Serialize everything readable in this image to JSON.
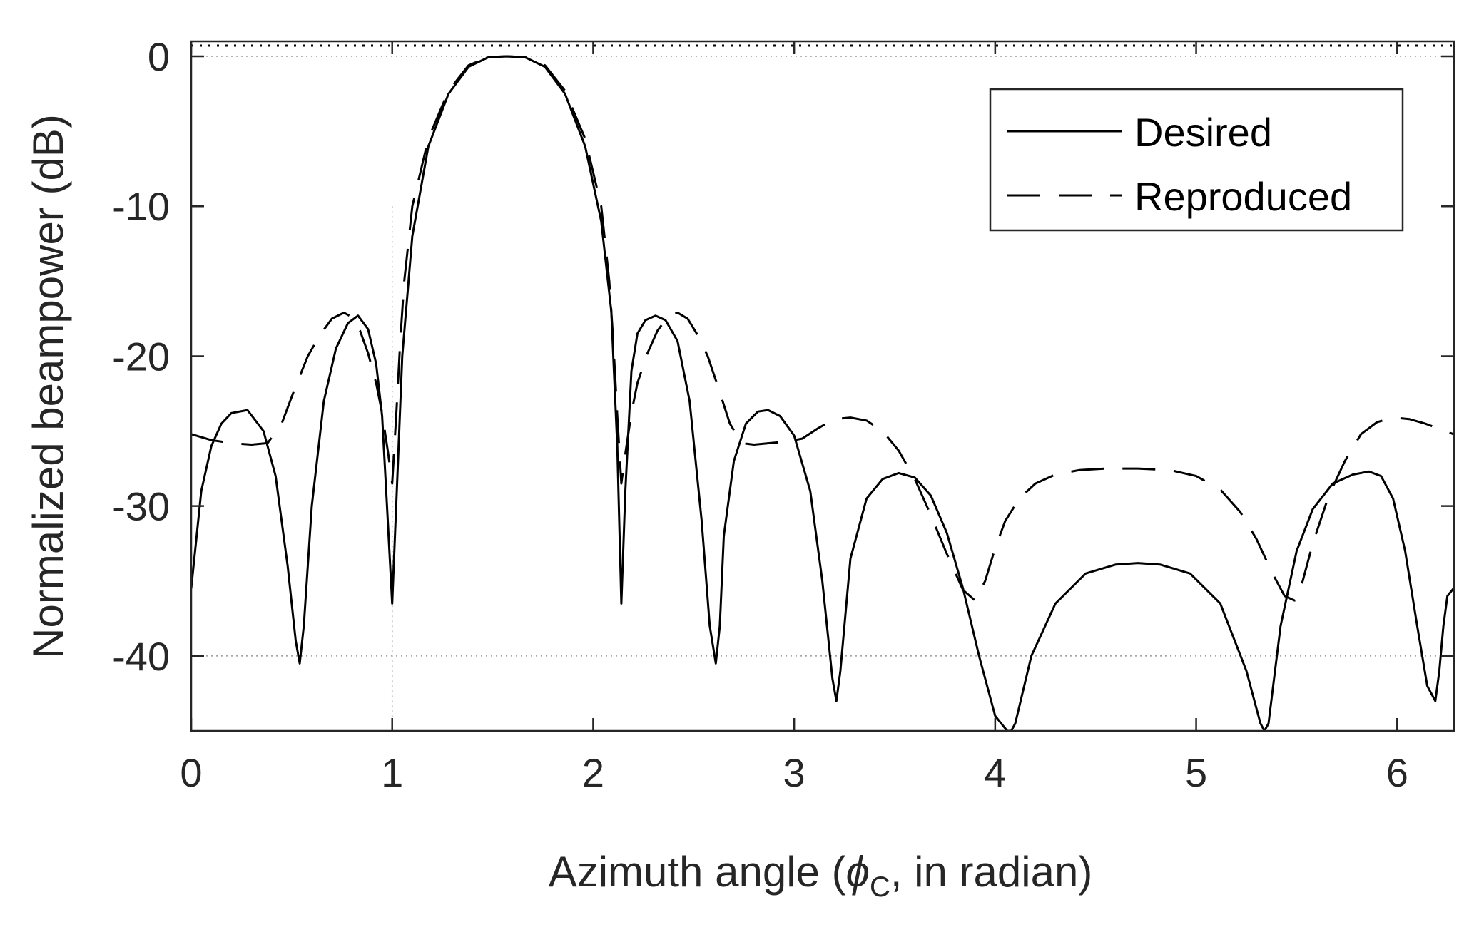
{
  "chart_data": {
    "type": "line",
    "title": "",
    "xlabel_main": "Azimuth angle (",
    "xlabel_symbol": "ϕ",
    "xlabel_sub": "C",
    "xlabel_tail": ", in radian)",
    "ylabel": "Normalized beampower (dB)",
    "xlim": [
      0,
      6.283
    ],
    "ylim": [
      -45,
      1
    ],
    "x_ticks": [
      0,
      1,
      2,
      3,
      4,
      5,
      6
    ],
    "y_ticks": [
      0,
      -10,
      -20,
      -30,
      -40
    ],
    "x_tick_labels": [
      "0",
      "1",
      "2",
      "3",
      "4",
      "5",
      "6"
    ],
    "y_tick_labels": [
      "0",
      "-10",
      "-20",
      "-30",
      "-40"
    ],
    "grid": "dotted lines at x = 1 and y = -40, 0",
    "legend_position": "top-right",
    "series": [
      {
        "name": "Desired",
        "style": "solid",
        "color": "#000000",
        "x": [
          0,
          0.05,
          0.1,
          0.15,
          0.2,
          0.28,
          0.36,
          0.42,
          0.48,
          0.52,
          0.54,
          0.56,
          0.6,
          0.66,
          0.72,
          0.78,
          0.83,
          0.88,
          0.92,
          0.95,
          0.97,
          0.99,
          1.0,
          1.02,
          1.05,
          1.1,
          1.18,
          1.28,
          1.38,
          1.48,
          1.57,
          1.66,
          1.76,
          1.86,
          1.96,
          2.04,
          2.09,
          2.12,
          2.14,
          2.16,
          2.19,
          2.22,
          2.26,
          2.31,
          2.36,
          2.42,
          2.48,
          2.54,
          2.58,
          2.61,
          2.63,
          2.65,
          2.7,
          2.76,
          2.82,
          2.87,
          2.93,
          3.0,
          3.08,
          3.14,
          3.19,
          3.21,
          3.23,
          3.28,
          3.36,
          3.44,
          3.52,
          3.6,
          3.68,
          3.76,
          3.84,
          3.92,
          4.0,
          4.06,
          4.08,
          4.1,
          4.18,
          4.3,
          4.45,
          4.6,
          4.71,
          4.82,
          4.97,
          5.12,
          5.25,
          5.32,
          5.34,
          5.36,
          5.42,
          5.5,
          5.58,
          5.68,
          5.78,
          5.86,
          5.92,
          5.98,
          6.04,
          6.1,
          6.15,
          6.19,
          6.21,
          6.23,
          6.25,
          6.28
        ],
        "y": [
          -35.5,
          -29,
          -26,
          -24.5,
          -23.8,
          -23.6,
          -25,
          -28,
          -34,
          -39,
          -40.5,
          -38,
          -30,
          -23,
          -19.5,
          -17.8,
          -17.3,
          -18.2,
          -20.5,
          -24,
          -29,
          -34,
          -36.5,
          -30,
          -20,
          -12,
          -6,
          -2.5,
          -0.7,
          -0.05,
          0,
          -0.05,
          -0.7,
          -2.5,
          -6,
          -11,
          -17,
          -26,
          -36.5,
          -29,
          -21,
          -18.5,
          -17.6,
          -17.3,
          -17.6,
          -19,
          -23,
          -31,
          -38,
          -40.5,
          -38,
          -32,
          -27,
          -24.5,
          -23.7,
          -23.6,
          -24,
          -25.3,
          -29,
          -35,
          -41.5,
          -43,
          -41,
          -33.5,
          -29.5,
          -28.2,
          -27.8,
          -28.1,
          -29.3,
          -31.8,
          -35.5,
          -40,
          -44,
          -45,
          -45,
          -44.5,
          -40,
          -36.5,
          -34.5,
          -33.9,
          -33.8,
          -33.9,
          -34.5,
          -36.5,
          -41,
          -44.5,
          -45,
          -44.5,
          -38,
          -33,
          -30.2,
          -28.5,
          -27.9,
          -27.7,
          -28,
          -29.5,
          -33,
          -38,
          -42,
          -43,
          -41,
          -38,
          -36,
          -35.5
        ]
      },
      {
        "name": "Reproduced",
        "style": "dashed",
        "color": "#000000",
        "x": [
          0,
          0.1,
          0.2,
          0.3,
          0.38,
          0.45,
          0.52,
          0.58,
          0.64,
          0.7,
          0.76,
          0.8,
          0.84,
          0.88,
          0.92,
          0.95,
          0.98,
          1.0,
          1.02,
          1.04,
          1.06,
          1.1,
          1.18,
          1.28,
          1.38,
          1.48,
          1.57,
          1.66,
          1.76,
          1.86,
          1.96,
          2.04,
          2.08,
          2.1,
          2.12,
          2.14,
          2.16,
          2.19,
          2.22,
          2.27,
          2.32,
          2.37,
          2.42,
          2.47,
          2.52,
          2.57,
          2.62,
          2.68,
          2.74,
          2.8,
          2.88,
          2.96,
          3.04,
          3.12,
          3.2,
          3.28,
          3.36,
          3.44,
          3.52,
          3.6,
          3.68,
          3.76,
          3.84,
          3.9,
          3.95,
          4.0,
          4.05,
          4.12,
          4.2,
          4.3,
          4.42,
          4.55,
          4.71,
          4.87,
          5.0,
          5.12,
          5.22,
          5.3,
          5.38,
          5.44,
          5.49,
          5.53,
          5.58,
          5.66,
          5.74,
          5.82,
          5.9,
          5.98,
          6.06,
          6.14,
          6.2,
          6.28
        ],
        "y": [
          -25.2,
          -25.6,
          -25.8,
          -25.9,
          -25.8,
          -24.5,
          -22,
          -20,
          -18.6,
          -17.5,
          -17.1,
          -17.4,
          -18.3,
          -19.8,
          -21.8,
          -23.8,
          -26.5,
          -28.5,
          -24,
          -19,
          -15,
          -10,
          -5.5,
          -2.3,
          -0.6,
          -0.05,
          0,
          -0.05,
          -0.6,
          -2.3,
          -5.5,
          -10,
          -15,
          -19,
          -24,
          -28.5,
          -26.5,
          -23.8,
          -21.8,
          -19.8,
          -18.3,
          -17.4,
          -17.1,
          -17.5,
          -18.6,
          -20,
          -22,
          -24.5,
          -25.8,
          -25.9,
          -25.8,
          -25.7,
          -25.5,
          -24.8,
          -24.2,
          -24.1,
          -24.3,
          -25,
          -26.3,
          -28.2,
          -30.6,
          -33.2,
          -35.6,
          -36.3,
          -35,
          -32.8,
          -31,
          -29.5,
          -28.5,
          -27.9,
          -27.6,
          -27.5,
          -27.5,
          -27.6,
          -28,
          -28.9,
          -30.4,
          -32.2,
          -34.5,
          -36,
          -36.3,
          -35,
          -32.5,
          -29.3,
          -27,
          -25.2,
          -24.4,
          -24.1,
          -24.2,
          -24.5,
          -24.8,
          -25.2
        ]
      }
    ]
  }
}
